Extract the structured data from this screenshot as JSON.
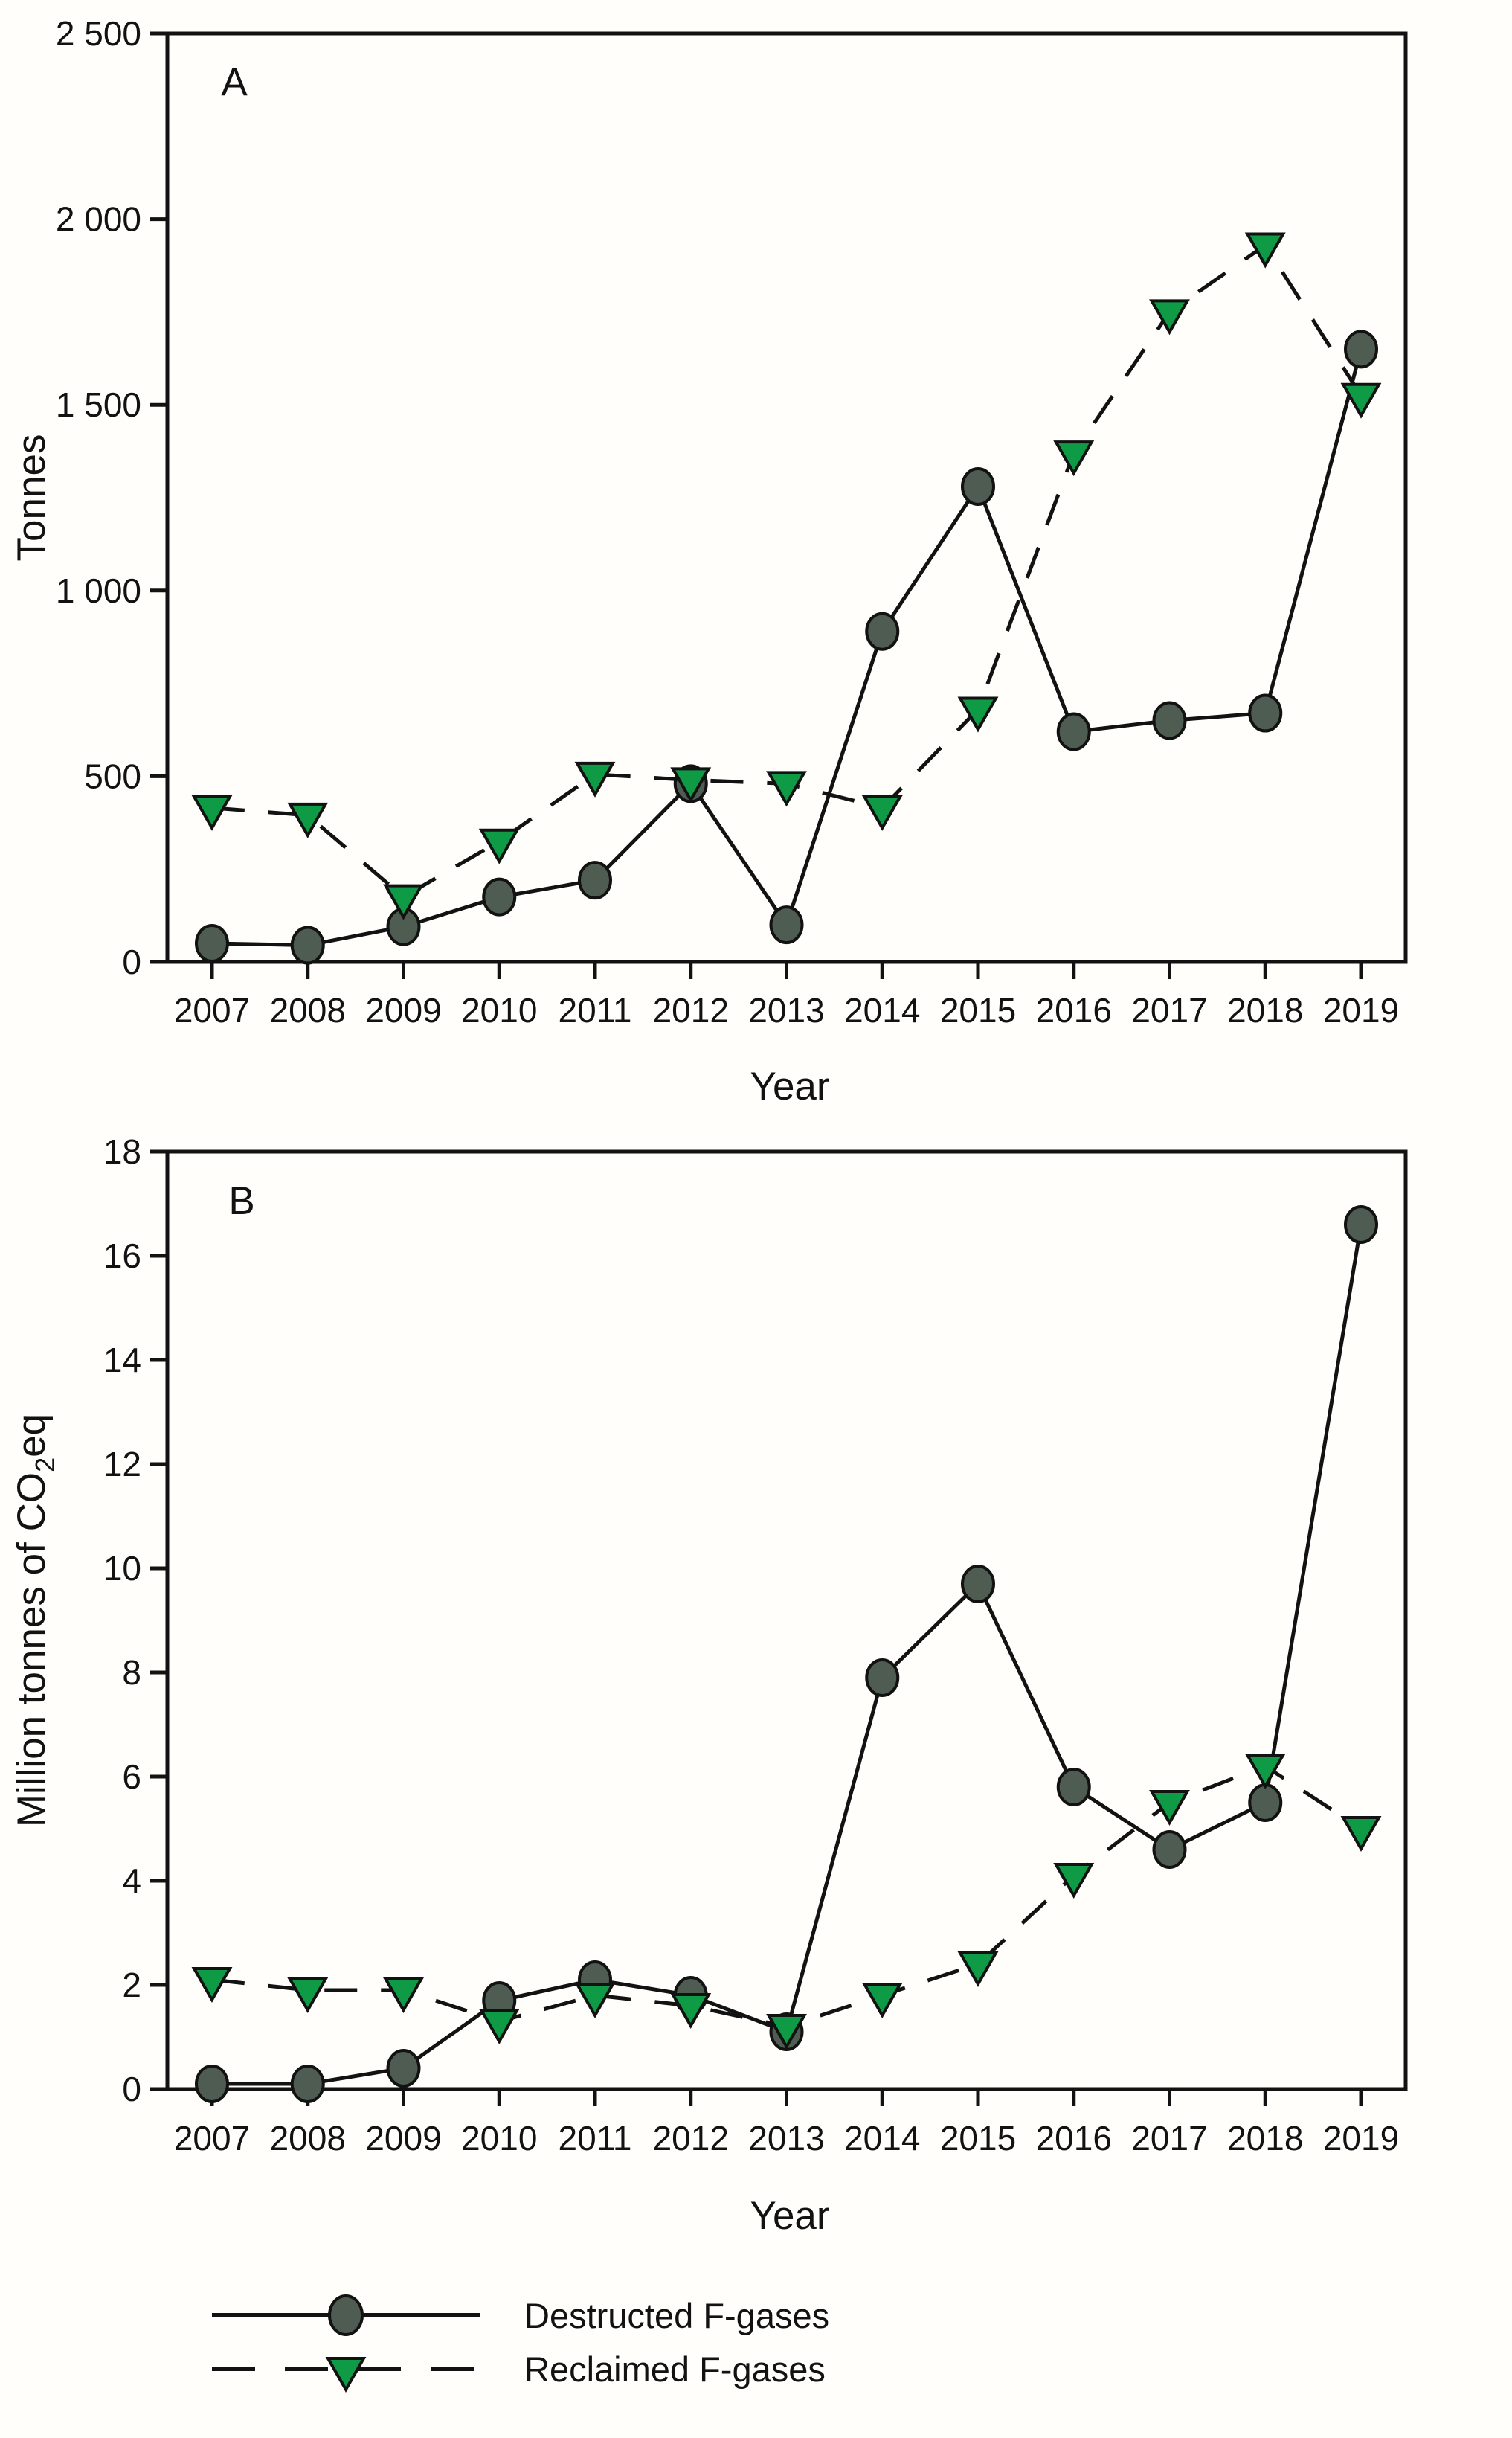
{
  "figure": {
    "background": "#fffefa",
    "colors": {
      "line": "#121212",
      "circle_fill": "#4e5c52",
      "triangle_fill": "#0f9b45",
      "marker_stroke": "#121212"
    },
    "panels": [
      {
        "label": "A",
        "ylabel": "Tonnes",
        "xlabel": "Year"
      },
      {
        "label": "B",
        "ylabel_pre": "Million tonnes of CO",
        "ylabel_sub": "2",
        "ylabel_post": "eq",
        "xlabel": "Year"
      }
    ],
    "legend": [
      {
        "label": "Destructed F-gases",
        "marker": "circle",
        "line": "solid"
      },
      {
        "label": "Reclaimed F-gases",
        "marker": "triangle-down",
        "line": "dashed"
      }
    ]
  },
  "chart_data": [
    {
      "panel": "A",
      "type": "line",
      "title": "",
      "xlabel": "Year",
      "ylabel": "Tonnes",
      "x": [
        "2007",
        "2008",
        "2009",
        "2010",
        "2011",
        "2012",
        "2013",
        "2014",
        "2015",
        "2016",
        "2017",
        "2018",
        "2019"
      ],
      "ylim": [
        0,
        2500
      ],
      "grid": false,
      "ytick_values": [
        0,
        500,
        1000,
        1500,
        2000,
        2500
      ],
      "ytick_labels": [
        "0",
        "500",
        "1 000",
        "1 500",
        "2 000",
        "2 500"
      ],
      "series": [
        {
          "name": "Destructed F-gases",
          "marker": "circle",
          "line": "solid",
          "values": [
            50,
            45,
            95,
            175,
            220,
            480,
            100,
            890,
            1280,
            620,
            650,
            670,
            1650
          ]
        },
        {
          "name": "Reclaimed F-gases",
          "marker": "triangle-down",
          "line": "dashed",
          "values": [
            415,
            395,
            175,
            325,
            505,
            490,
            480,
            415,
            680,
            1370,
            1750,
            1930,
            1525
          ]
        }
      ]
    },
    {
      "panel": "B",
      "type": "line",
      "title": "",
      "xlabel": "Year",
      "ylabel": "Million tonnes of CO2eq",
      "x": [
        "2007",
        "2008",
        "2009",
        "2010",
        "2011",
        "2012",
        "2013",
        "2014",
        "2015",
        "2016",
        "2017",
        "2018",
        "2019"
      ],
      "ylim": [
        0,
        18
      ],
      "grid": false,
      "ytick_values": [
        0,
        2,
        4,
        6,
        8,
        10,
        12,
        14,
        16,
        18
      ],
      "ytick_labels": [
        "0",
        "2",
        "4",
        "6",
        "8",
        "10",
        "12",
        "14",
        "16",
        "18"
      ],
      "series": [
        {
          "name": "Destructed F-gases",
          "marker": "circle",
          "line": "solid",
          "values": [
            0.1,
            0.1,
            0.4,
            1.7,
            2.1,
            1.8,
            1.1,
            7.9,
            9.7,
            5.8,
            4.6,
            5.5,
            16.6
          ]
        },
        {
          "name": "Reclaimed F-gases",
          "marker": "triangle-down",
          "line": "dashed",
          "values": [
            2.1,
            1.9,
            1.9,
            1.3,
            1.8,
            1.6,
            1.2,
            1.8,
            2.4,
            4.1,
            5.5,
            6.2,
            5.0
          ]
        }
      ]
    }
  ]
}
